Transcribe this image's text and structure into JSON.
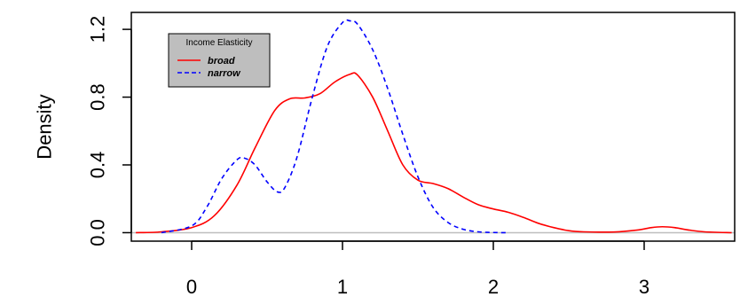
{
  "chart_data": {
    "type": "line",
    "title": "",
    "xlabel": "",
    "ylabel": "Density",
    "xlim": [
      -0.4,
      3.6
    ],
    "ylim": [
      -0.05,
      1.3
    ],
    "x_ticks": [
      0,
      1,
      2,
      3
    ],
    "y_ticks": [
      0.0,
      0.4,
      0.8,
      1.2
    ],
    "x_tick_labels": [
      "0",
      "1",
      "2",
      "3"
    ],
    "y_tick_labels": [
      "0.0",
      "0.4",
      "0.8",
      "1.2"
    ],
    "baseline": 0,
    "legend": {
      "title": "Income Elasticity",
      "position": "top-left",
      "background": "#bebebe"
    },
    "series": [
      {
        "name": "broad",
        "color": "#ff0000",
        "dash": "solid",
        "x": [
          -0.37,
          -0.2,
          0.0,
          0.15,
          0.3,
          0.42,
          0.55,
          0.65,
          0.75,
          0.85,
          0.95,
          1.05,
          1.1,
          1.2,
          1.3,
          1.4,
          1.5,
          1.6,
          1.7,
          1.8,
          1.9,
          2.0,
          2.1,
          2.2,
          2.3,
          2.4,
          2.5,
          2.6,
          2.8,
          2.95,
          3.05,
          3.12,
          3.2,
          3.3,
          3.4,
          3.58
        ],
        "y": [
          0.0,
          0.005,
          0.03,
          0.1,
          0.28,
          0.5,
          0.72,
          0.79,
          0.795,
          0.82,
          0.89,
          0.935,
          0.93,
          0.8,
          0.6,
          0.4,
          0.31,
          0.29,
          0.26,
          0.21,
          0.165,
          0.14,
          0.12,
          0.09,
          0.055,
          0.03,
          0.012,
          0.005,
          0.004,
          0.015,
          0.03,
          0.035,
          0.03,
          0.015,
          0.005,
          0.0
        ]
      },
      {
        "name": "narrow",
        "color": "#0000ff",
        "dash": "dashed",
        "x": [
          -0.2,
          0.0,
          0.1,
          0.2,
          0.3,
          0.35,
          0.42,
          0.5,
          0.57,
          0.62,
          0.7,
          0.8,
          0.9,
          1.0,
          1.05,
          1.1,
          1.2,
          1.3,
          1.4,
          1.5,
          1.6,
          1.7,
          1.8,
          1.9,
          2.0,
          2.1
        ],
        "y": [
          0.0,
          0.04,
          0.15,
          0.32,
          0.43,
          0.44,
          0.4,
          0.3,
          0.24,
          0.27,
          0.45,
          0.8,
          1.1,
          1.24,
          1.25,
          1.23,
          1.08,
          0.85,
          0.58,
          0.33,
          0.15,
          0.06,
          0.02,
          0.005,
          0.001,
          0.0
        ]
      }
    ]
  }
}
